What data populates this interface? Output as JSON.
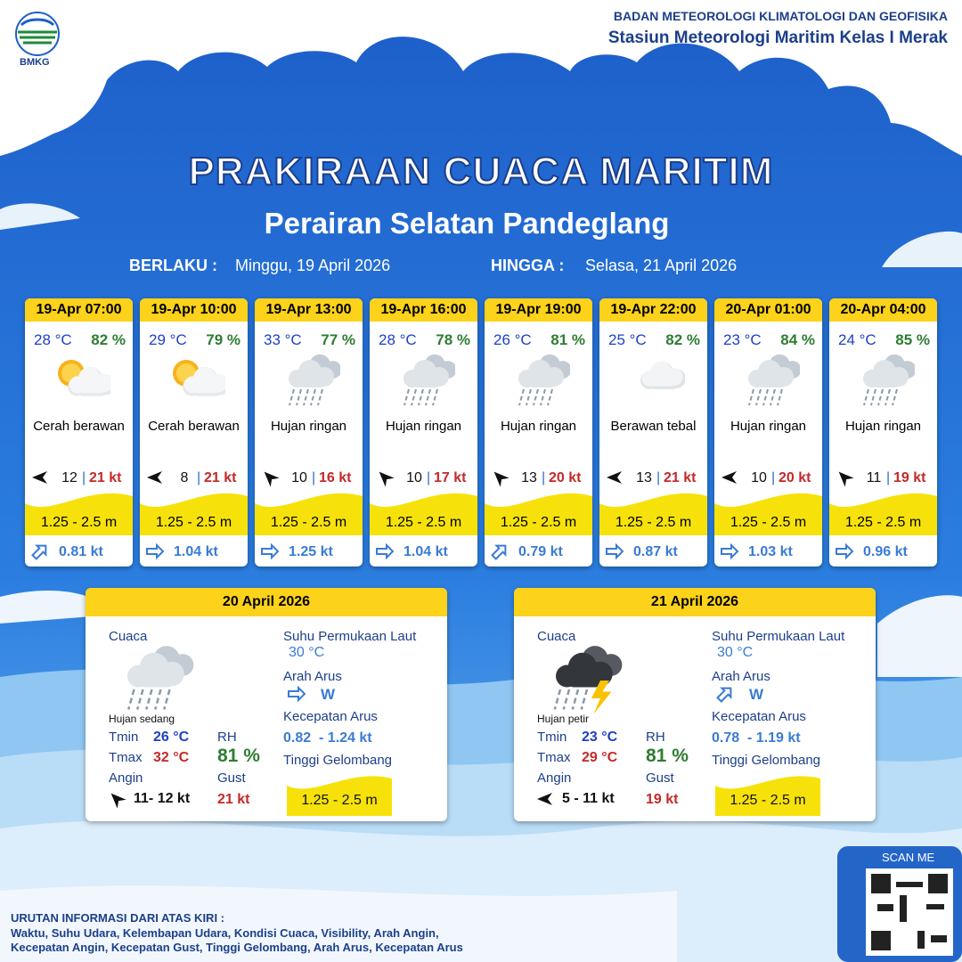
{
  "header": {
    "logo": "BMKG",
    "agency": "BADAN METEOROLOGI KLIMATOLOGI DAN GEOFISIKA",
    "station": "Stasiun Meteorologi Maritim Kelas I Merak"
  },
  "title": "PRAKIRAAN CUACA MARITIM",
  "subtitle": "Perairan Selatan Pandeglang",
  "validity": {
    "from_label": "BERLAKU :",
    "from": "Minggu, 19 April 2026",
    "to_label": "HINGGA :",
    "to": "Selasa, 21 April 2026"
  },
  "forecasts": [
    {
      "time": "19-Apr 07:00",
      "temperature": "28 °C",
      "humidity": "82 %",
      "icon": "sun-cloud",
      "condition": "Cerah berawan",
      "wind_dir_deg": 180,
      "wind": "12",
      "gust": "21 kt",
      "wave": "1.25 - 2.5 m",
      "current_dir_deg": 135,
      "current": "0.81 kt"
    },
    {
      "time": "19-Apr 10:00",
      "temperature": "29 °C",
      "humidity": "79 %",
      "icon": "sun-cloud",
      "condition": "Cerah berawan",
      "wind_dir_deg": 180,
      "wind": "8",
      "gust": "21 kt",
      "wave": "1.25 - 2.5 m",
      "current_dir_deg": 180,
      "current": "1.04 kt"
    },
    {
      "time": "19-Apr 13:00",
      "temperature": "33 °C",
      "humidity": "77 %",
      "icon": "rain",
      "condition": "Hujan ringan",
      "wind_dir_deg": 225,
      "wind": "10",
      "gust": "16 kt",
      "wave": "1.25 - 2.5 m",
      "current_dir_deg": 180,
      "current": "1.25 kt"
    },
    {
      "time": "19-Apr 16:00",
      "temperature": "28 °C",
      "humidity": "78 %",
      "icon": "rain",
      "condition": "Hujan ringan",
      "wind_dir_deg": 225,
      "wind": "10",
      "gust": "17 kt",
      "wave": "1.25 - 2.5 m",
      "current_dir_deg": 180,
      "current": "1.04 kt"
    },
    {
      "time": "19-Apr 19:00",
      "temperature": "26 °C",
      "humidity": "81 %",
      "icon": "rain",
      "condition": "Hujan ringan",
      "wind_dir_deg": 225,
      "wind": "13",
      "gust": "20 kt",
      "wave": "1.25 - 2.5 m",
      "current_dir_deg": 135,
      "current": "0.79 kt"
    },
    {
      "time": "19-Apr 22:00",
      "temperature": "25 °C",
      "humidity": "82 %",
      "icon": "cloud",
      "condition": "Berawan tebal",
      "wind_dir_deg": 180,
      "wind": "13",
      "gust": "21 kt",
      "wave": "1.25 - 2.5 m",
      "current_dir_deg": 180,
      "current": "0.87 kt"
    },
    {
      "time": "20-Apr 01:00",
      "temperature": "23 °C",
      "humidity": "84 %",
      "icon": "rain",
      "condition": "Hujan ringan",
      "wind_dir_deg": 180,
      "wind": "10",
      "gust": "20 kt",
      "wave": "1.25 - 2.5 m",
      "current_dir_deg": 180,
      "current": "1.03 kt"
    },
    {
      "time": "20-Apr 04:00",
      "temperature": "24 °C",
      "humidity": "85 %",
      "icon": "rain",
      "condition": "Hujan ringan",
      "wind_dir_deg": 225,
      "wind": "11",
      "gust": "19 kt",
      "wave": "1.25 - 2.5 m",
      "current_dir_deg": 180,
      "current": "0.96 kt"
    }
  ],
  "daily": [
    {
      "date": "20 April 2026",
      "weather_label": "Cuaca",
      "icon": "rain",
      "condition": "Hujan sedang",
      "tmin_label": "Tmin",
      "tmin": "26 °C",
      "tmax_label": "Tmax",
      "tmax": "32 °C",
      "rh_label": "RH",
      "rh": "81 %",
      "wind_label": "Angin",
      "wind_dir_deg": 225,
      "wind": "11- 12 kt",
      "gust_label": "Gust",
      "gust": "21 kt",
      "sst_label": "Suhu Permukaan Laut",
      "sst": "30 °C",
      "current_dir_label": "Arah Arus",
      "current_dir_deg": 180,
      "current_dir": "W",
      "current_speed_label": "Kecepatan Arus",
      "current_speed": "0.82  - 1.24 kt",
      "wave_label": "Tinggi Gelombang",
      "wave": "1.25 - 2.5 m"
    },
    {
      "date": "21 April 2026",
      "weather_label": "Cuaca",
      "icon": "thunder",
      "condition": "Hujan petir",
      "tmin_label": "Tmin",
      "tmin": "23 °C",
      "tmax_label": "Tmax",
      "tmax": "29 °C",
      "rh_label": "RH",
      "rh": "81 %",
      "wind_label": "Angin",
      "wind_dir_deg": 180,
      "wind": "5 - 11 kt",
      "gust_label": "Gust",
      "gust": "19 kt",
      "sst_label": "Suhu Permukaan Laut",
      "sst": "30 °C",
      "current_dir_label": "Arah Arus",
      "current_dir_deg": 135,
      "current_dir": "W",
      "current_speed_label": "Kecepatan Arus",
      "current_speed": "0.78  - 1.19 kt",
      "wave_label": "Tinggi Gelombang",
      "wave": "1.25 - 2.5 m"
    }
  ],
  "footer": {
    "scan": "SCAN ME",
    "legend_title": "URUTAN INFORMASI DARI ATAS KIRI :",
    "legend_lines": [
      "Waktu, Suhu Udara, Kelembapan Udara, Kondisi Cuaca, Visibility, Arah Angin,",
      "Kecepatan Angin, Kecepatan Gust, Tinggi Gelombang, Arah Arus, Kecepatan Arus"
    ]
  }
}
